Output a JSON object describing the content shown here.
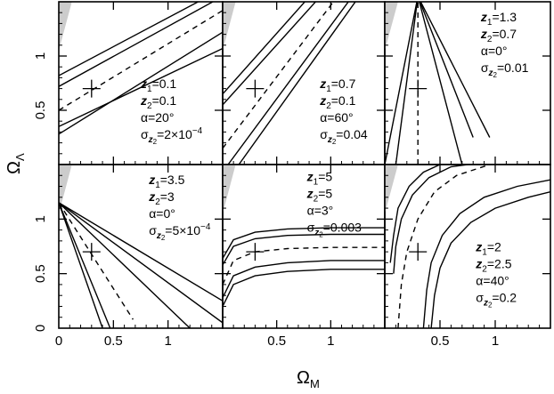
{
  "axes": {
    "x_label": "Ω",
    "x_label_sub": "M",
    "y_label": "Ω",
    "y_label_sub": "Λ"
  },
  "chart_data": {
    "type": "line",
    "layout": "2x3 grid of panels sharing axes",
    "xlim": [
      0,
      1.5
    ],
    "ylim": [
      0,
      1.5
    ],
    "x_ticks": [
      "0",
      "0.5",
      "1"
    ],
    "y_ticks": [
      "0",
      "0.5",
      "1"
    ],
    "fiducial_marker": {
      "x": 0.3,
      "y": 0.7,
      "shape": "cross"
    },
    "excluded_region": {
      "color": "#cccccc",
      "location": "upper-left corner"
    },
    "panels": [
      {
        "id": "top-left",
        "annotations": [
          "z",
          "1",
          "=0.1",
          "z",
          "2",
          "=0.1",
          "α=20°",
          "σ",
          "z",
          "2",
          "=2×10",
          "−4"
        ],
        "annotation_text": [
          "z1=0.1",
          "z2=0.1",
          "α=20°",
          "σz2=2×10−4"
        ],
        "annotation_position": "lower-right",
        "contours": [
          {
            "style": "dashed",
            "x": [
              0,
              1.5
            ],
            "y": [
              0.5,
              1.42
            ]
          },
          {
            "style": "solid",
            "x": [
              0,
              1.5
            ],
            "y": [
              0.35,
              1.07
            ]
          },
          {
            "style": "solid",
            "x": [
              0,
              1.5
            ],
            "y": [
              0.28,
              1.22
            ]
          },
          {
            "style": "solid",
            "x": [
              0,
              1.5
            ],
            "y": [
              0.72,
              1.55
            ]
          },
          {
            "style": "solid",
            "x": [
              0,
              1.5
            ],
            "y": [
              0.82,
              1.62
            ]
          }
        ]
      },
      {
        "id": "top-middle",
        "annotation_text": [
          "z1=0.7",
          "z2=0.1",
          "α=60°",
          "σz2=0.04"
        ],
        "annotation_position": "lower-right",
        "contours": [
          {
            "style": "dashed",
            "x": [
              0,
              1.1
            ],
            "y": [
              0.15,
              1.6
            ]
          },
          {
            "style": "solid",
            "x": [
              0.05,
              1.2
            ],
            "y": [
              0.0,
              1.55
            ]
          },
          {
            "style": "solid",
            "x": [
              0.15,
              1.3
            ],
            "y": [
              0.0,
              1.6
            ]
          },
          {
            "style": "solid",
            "x": [
              0,
              0.95
            ],
            "y": [
              0.55,
              1.6
            ]
          },
          {
            "style": "solid",
            "x": [
              0,
              0.85
            ],
            "y": [
              0.65,
              1.6
            ]
          }
        ]
      },
      {
        "id": "top-right",
        "annotation_text": [
          "z1=1.3",
          "z2=0.7",
          "α=0°",
          "σz2=0.01"
        ],
        "annotation_position": "upper-right",
        "contours": [
          {
            "style": "dashed",
            "x": [
              0.3,
              0.3
            ],
            "y": [
              0,
              1.5
            ]
          },
          {
            "style": "solid",
            "x": [
              0.0,
              0.3
            ],
            "y": [
              0.0,
              1.55
            ]
          },
          {
            "style": "solid",
            "x": [
              0.1,
              0.3
            ],
            "y": [
              0.0,
              1.55
            ]
          },
          {
            "style": "solid",
            "x": [
              0.3,
              0.7
            ],
            "y": [
              1.55,
              0.0
            ]
          },
          {
            "style": "solid",
            "x": [
              0.3,
              0.8
            ],
            "y": [
              1.55,
              0.25
            ]
          },
          {
            "style": "solid",
            "x": [
              0.3,
              0.95
            ],
            "y": [
              1.55,
              0.25
            ]
          }
        ]
      },
      {
        "id": "bottom-left",
        "annotation_text": [
          "z1=3.5",
          "z2=3",
          "α=0°",
          "σz2=5×10−4"
        ],
        "annotation_position": "upper-right",
        "contours": [
          {
            "style": "dashed",
            "x": [
              0,
              0.68
            ],
            "y": [
              1.15,
              0.08
            ]
          },
          {
            "style": "solid",
            "x": [
              0,
              0.4
            ],
            "y": [
              1.15,
              0
            ]
          },
          {
            "style": "solid",
            "x": [
              0,
              0.47
            ],
            "y": [
              1.15,
              0
            ]
          },
          {
            "style": "solid",
            "x": [
              0,
              1.2
            ],
            "y": [
              1.15,
              0
            ]
          },
          {
            "style": "solid",
            "x": [
              0,
              1.5
            ],
            "y": [
              1.15,
              0.05
            ]
          },
          {
            "style": "solid",
            "x": [
              0,
              1.5
            ],
            "y": [
              1.15,
              0.25
            ]
          }
        ]
      },
      {
        "id": "bottom-middle",
        "annotation_text": [
          "z1=5",
          "z2=5",
          "α=3°",
          "σz2=0.003"
        ],
        "annotation_position": "top-center and lower-right",
        "contours": [
          {
            "style": "dashed",
            "x": [
              0,
              0.1,
              0.3,
              0.6,
              1.0,
              1.5
            ],
            "y": [
              0.4,
              0.62,
              0.7,
              0.73,
              0.74,
              0.74
            ]
          },
          {
            "style": "solid",
            "x": [
              0,
              0.1,
              0.3,
              0.6,
              1.0,
              1.5
            ],
            "y": [
              0.58,
              0.75,
              0.82,
              0.85,
              0.86,
              0.86
            ]
          },
          {
            "style": "solid",
            "x": [
              0,
              0.1,
              0.3,
              0.6,
              1.0,
              1.5
            ],
            "y": [
              0.64,
              0.81,
              0.88,
              0.91,
              0.92,
              0.92
            ]
          },
          {
            "style": "solid",
            "x": [
              0,
              0.1,
              0.3,
              0.6,
              1.0,
              1.5
            ],
            "y": [
              0.28,
              0.48,
              0.56,
              0.6,
              0.62,
              0.62
            ]
          },
          {
            "style": "solid",
            "x": [
              0,
              0.1,
              0.3,
              0.6,
              1.0,
              1.5
            ],
            "y": [
              0.2,
              0.4,
              0.48,
              0.52,
              0.54,
              0.54
            ]
          }
        ]
      },
      {
        "id": "bottom-right",
        "annotation_text": [
          "z1=2",
          "z2=2.5",
          "α=40°",
          "σz2=0.2"
        ],
        "annotation_position": "lower-right",
        "contours": [
          {
            "style": "dashed",
            "x": [
              0.12,
              0.15,
              0.2,
              0.3,
              0.45,
              0.65,
              0.95
            ],
            "y": [
              0.0,
              0.4,
              0.7,
              1.0,
              1.25,
              1.4,
              1.5
            ]
          },
          {
            "style": "solid",
            "x": [
              0.08,
              0.1,
              0.15,
              0.25,
              0.4,
              0.6,
              0.75
            ],
            "y": [
              0.5,
              0.75,
              1.0,
              1.22,
              1.38,
              1.48,
              1.5
            ]
          },
          {
            "style": "solid",
            "x": [
              0.05,
              0.08,
              0.12,
              0.22,
              0.35,
              0.5,
              0.65
            ],
            "y": [
              0.6,
              0.85,
              1.1,
              1.3,
              1.43,
              1.5,
              1.52
            ]
          },
          {
            "style": "solid",
            "x": [
              0.35,
              0.38,
              0.42,
              0.52,
              0.68,
              0.9,
              1.2,
              1.5
            ],
            "y": [
              0.0,
              0.35,
              0.6,
              0.85,
              1.05,
              1.2,
              1.3,
              1.36
            ]
          },
          {
            "style": "solid",
            "x": [
              0.42,
              0.45,
              0.5,
              0.6,
              0.78,
              1.0,
              1.3,
              1.5
            ],
            "y": [
              0.0,
              0.3,
              0.55,
              0.78,
              0.97,
              1.1,
              1.2,
              1.25
            ]
          }
        ]
      }
    ]
  }
}
